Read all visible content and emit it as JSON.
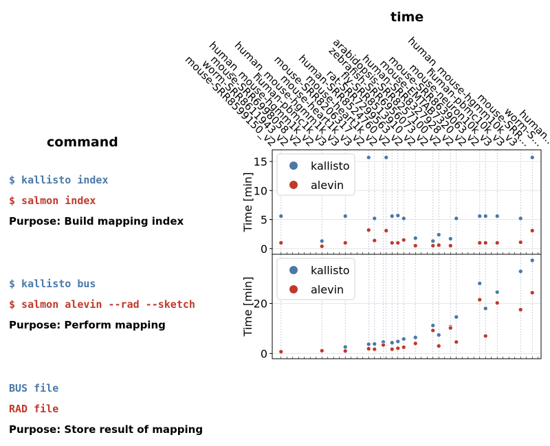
{
  "headings": {
    "time": "time",
    "command": "command"
  },
  "sections": [
    {
      "lines": [
        {
          "text": "$ kallisto index",
          "color": "#4a78a8"
        },
        {
          "text": "$ salmon index",
          "color": "#c0392b"
        }
      ],
      "purpose": "Purpose: Build mapping index"
    },
    {
      "lines": [
        {
          "text": "$ kallisto bus",
          "color": "#4a78a8"
        },
        {
          "text": "$ salmon alevin --rad --sketch",
          "color": "#c0392b"
        }
      ],
      "purpose": "Purpose: Perform mapping"
    },
    {
      "lines": [
        {
          "text": "BUS file",
          "color": "#4a78a8"
        },
        {
          "text": "RAD file",
          "color": "#c0392b"
        }
      ],
      "purpose": "Purpose: Store result of mapping"
    }
  ],
  "chart_data": {
    "type": "scatter",
    "colors": {
      "kallisto": "#4a78a8",
      "alevin": "#c0392b"
    },
    "dataset_labels": [
      "mouse-SRR8599150_v2",
      "worm-SRR8611943_v2",
      "mouse-SRR6998058_v2",
      "human_mouse-hgmm1k_v2",
      "human-pbmc1k_v3",
      "human_mouse-hgmm1k_v3",
      "mouse-heart1k_v3",
      "mouse-SRR8206317_v2",
      "mouse-heart1k_v2",
      "human-SRR8524760_v2",
      "rat-SRR7299563_v2",
      "fly-SRR8513910_v2",
      "zebrafish-SRR6956073_v2",
      "arabidopsis-SRR8257100_v2",
      "human-SRR8327928_v2",
      "mouse-EMTAB7320_v2",
      "mouse-SRR8639063_v2",
      "mouse-neuron10k_v3",
      "human-pbmc10k_v3",
      "human_mouse-hgmm10k_v3",
      "mouse-SRR…",
      "worm-S…",
      "human…"
    ],
    "panels": [
      {
        "ylabel": "Time [min]",
        "ylim": [
          -0.5,
          16.3
        ],
        "yticks": [
          0,
          5,
          10,
          15
        ],
        "legend": [
          "kallisto",
          "alevin"
        ],
        "legend_position": "top-left",
        "grid": true,
        "series": [
          {
            "name": "kallisto",
            "points": [
              [
                0,
                5.6
              ],
              [
                7,
                1.3
              ],
              [
                11,
                5.6
              ],
              [
                15,
                15.7
              ],
              [
                16,
                5.2
              ],
              [
                18,
                15.7
              ],
              [
                19,
                5.6
              ],
              [
                20,
                5.7
              ],
              [
                21,
                5.2
              ],
              [
                23,
                1.8
              ],
              [
                26,
                1.3
              ],
              [
                27,
                2.4
              ],
              [
                29,
                1.7
              ],
              [
                30,
                5.2
              ],
              [
                34,
                5.6
              ],
              [
                35,
                5.6
              ],
              [
                37,
                5.6
              ],
              [
                41,
                5.2
              ],
              [
                43,
                15.7
              ]
            ]
          },
          {
            "name": "alevin",
            "points": [
              [
                0,
                1.0
              ],
              [
                7,
                0.4
              ],
              [
                11,
                1.0
              ],
              [
                15,
                3.2
              ],
              [
                16,
                1.4
              ],
              [
                18,
                3.1
              ],
              [
                19,
                1.0
              ],
              [
                20,
                1.0
              ],
              [
                21,
                1.5
              ],
              [
                23,
                0.5
              ],
              [
                26,
                0.5
              ],
              [
                27,
                0.6
              ],
              [
                29,
                0.5
              ],
              [
                34,
                1.0
              ],
              [
                35,
                1.0
              ],
              [
                37,
                1.0
              ],
              [
                41,
                1.1
              ],
              [
                43,
                3.1
              ]
            ]
          }
        ]
      },
      {
        "ylabel": "Time [min]",
        "ylim": [
          -1,
          38
        ],
        "yticks": [
          0,
          20
        ],
        "legend": [
          "kallisto",
          "alevin"
        ],
        "legend_position": "top-left",
        "grid": true,
        "series": [
          {
            "name": "kallisto",
            "points": [
              [
                0,
                0.7
              ],
              [
                7,
                1.3
              ],
              [
                11,
                2.6
              ],
              [
                15,
                3.7
              ],
              [
                16,
                3.8
              ],
              [
                17.5,
                4.6
              ],
              [
                19,
                4.3
              ],
              [
                20,
                4.8
              ],
              [
                21,
                5.8
              ],
              [
                23,
                6.4
              ],
              [
                26,
                11.2
              ],
              [
                27,
                7.4
              ],
              [
                29,
                10.7
              ],
              [
                30,
                14.6
              ],
              [
                34,
                28.0
              ],
              [
                35,
                18.0
              ],
              [
                37,
                24.5
              ],
              [
                41,
                32.8
              ],
              [
                43,
                37.2
              ]
            ]
          },
          {
            "name": "alevin",
            "points": [
              [
                0,
                0.7
              ],
              [
                7,
                1.1
              ],
              [
                11,
                1.0
              ],
              [
                15,
                1.9
              ],
              [
                16,
                1.7
              ],
              [
                17.5,
                3.4
              ],
              [
                19,
                1.7
              ],
              [
                20,
                2.1
              ],
              [
                21,
                2.5
              ],
              [
                23,
                4.0
              ],
              [
                26,
                9.2
              ],
              [
                27,
                3.0
              ],
              [
                29,
                10.2
              ],
              [
                30,
                4.6
              ],
              [
                34,
                21.5
              ],
              [
                35,
                7.0
              ],
              [
                37,
                20.2
              ],
              [
                41,
                17.5
              ],
              [
                43,
                24.3
              ]
            ]
          }
        ]
      }
    ]
  }
}
